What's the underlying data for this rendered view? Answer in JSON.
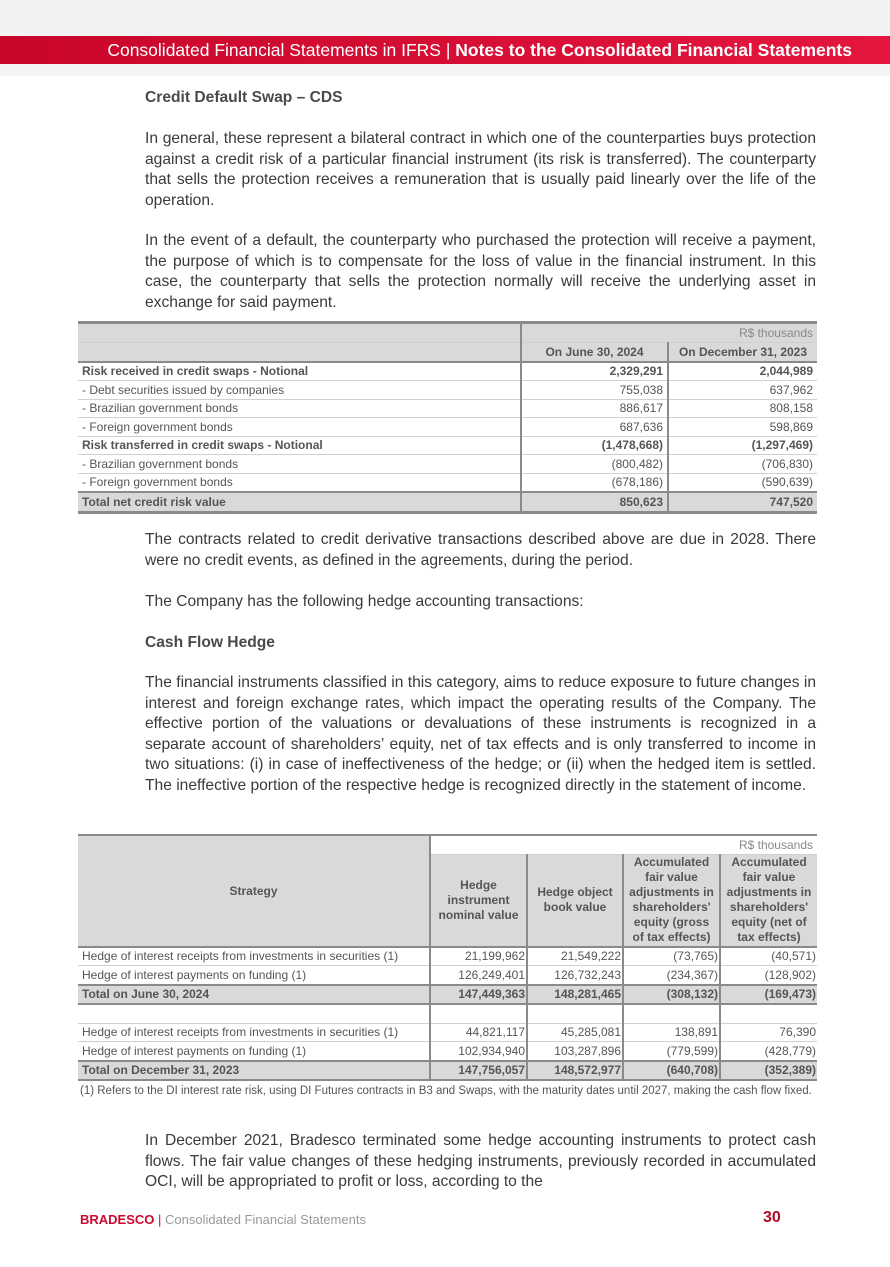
{
  "header": {
    "section": "Consolidated Financial Statements in IFRS",
    "separator": "|",
    "title": "Notes to the Consolidated Financial Statements"
  },
  "cds": {
    "heading": "Credit Default Swap – CDS",
    "p1": "In general, these represent a bilateral contract in which one of the counterparties buys protection against a credit risk of a particular financial instrument (its risk is transferred). The counterparty that sells the protection receives a remuneration that is usually paid linearly over the life of the operation.",
    "p2": "In the event of a default, the counterparty who purchased the protection will receive a payment, the purpose of which is to compensate for the loss of value in the financial instrument. In this case, the counterparty that sells the protection normally will receive the underlying asset in exchange for said payment."
  },
  "table1": {
    "unit": "R$ thousands",
    "columns": [
      "On June 30, 2024",
      "On December 31, 2023"
    ],
    "rows": [
      {
        "label": "Risk received in credit swaps - Notional",
        "values": [
          "2,329,291",
          "2,044,989"
        ],
        "bold": true
      },
      {
        "label": "- Debt securities issued by companies",
        "values": [
          "755,038",
          "637,962"
        ]
      },
      {
        "label": "- Brazilian government bonds",
        "values": [
          "886,617",
          "808,158"
        ]
      },
      {
        "label": "- Foreign government bonds",
        "values": [
          "687,636",
          "598,869"
        ]
      },
      {
        "label": "Risk transferred in credit swaps - Notional",
        "values": [
          "(1,478,668)",
          "(1,297,469)"
        ],
        "bold": true
      },
      {
        "label": "- Brazilian government bonds",
        "values": [
          "(800,482)",
          "(706,830)"
        ]
      },
      {
        "label": "- Foreign government bonds",
        "values": [
          "(678,186)",
          "(590,639)"
        ]
      }
    ],
    "total": {
      "label": "Total net credit risk value",
      "values": [
        "850,623",
        "747,520"
      ]
    }
  },
  "mid": {
    "p1": "The contracts related to credit derivative transactions described above are due in 2028. There were no credit events, as defined in the agreements, during the period.",
    "p2": "The Company has the following hedge accounting transactions:",
    "heading": "Cash Flow Hedge",
    "p3": "The financial instruments classified in this category, aims to reduce exposure to future changes in interest and foreign exchange rates, which impact the operating results of the Company. The effective portion of the valuations or devaluations of these instruments is recognized in a separate account of shareholders’ equity, net of tax effects and is only transferred to income in two situations: (i) in case of ineffectiveness of the hedge; or (ii) when the hedged item is settled. The ineffective portion of the respective hedge is recognized directly in the statement of income."
  },
  "table2": {
    "unit": "R$ thousands",
    "strategy_header": "Strategy",
    "columns": [
      "Hedge instrument nominal value",
      "Hedge object book value",
      "Accumulated fair value adjustments in shareholders' equity (gross of tax effects)",
      "Accumulated fair value adjustments in shareholders' equity (net of tax effects)"
    ],
    "rows_2024": [
      {
        "label": "Hedge of interest receipts from investments in securities (1)",
        "values": [
          "21,199,962",
          "21,549,222",
          "(73,765)",
          "(40,571)"
        ]
      },
      {
        "label": "Hedge of interest payments on funding (1)",
        "values": [
          "126,249,401",
          "126,732,243",
          "(234,367)",
          "(128,902)"
        ]
      }
    ],
    "total_2024": {
      "label": "Total on June 30, 2024",
      "values": [
        "147,449,363",
        "148,281,465",
        "(308,132)",
        "(169,473)"
      ]
    },
    "rows_2023": [
      {
        "label": "Hedge of interest receipts from investments in securities (1)",
        "values": [
          "44,821,117",
          "45,285,081",
          "138,891",
          "76,390"
        ]
      },
      {
        "label": "Hedge of interest payments on funding (1)",
        "values": [
          "102,934,940",
          "103,287,896",
          "(779,599)",
          "(428,779)"
        ]
      }
    ],
    "total_2023": {
      "label": "Total on December 31, 2023",
      "values": [
        "147,756,057",
        "148,572,977",
        "(640,708)",
        "(352,389)"
      ]
    },
    "footnote": "(1) Refers to the DI interest rate risk, using DI Futures contracts in B3 and Swaps, with the maturity dates until 2027, making the cash flow fixed."
  },
  "closing": "In December 2021, Bradesco terminated some hedge accounting instruments to protect cash flows. The fair value changes of these hedging instruments, previously recorded in accumulated OCI, will be appropriated to profit or loss, according to the",
  "footer": {
    "brand": "BRADESCO",
    "separator": "|",
    "title": "Consolidated Financial Statements",
    "page": "30"
  },
  "colors": {
    "brand_red": "#cc092f",
    "table_gray": "#d9d9d9"
  }
}
